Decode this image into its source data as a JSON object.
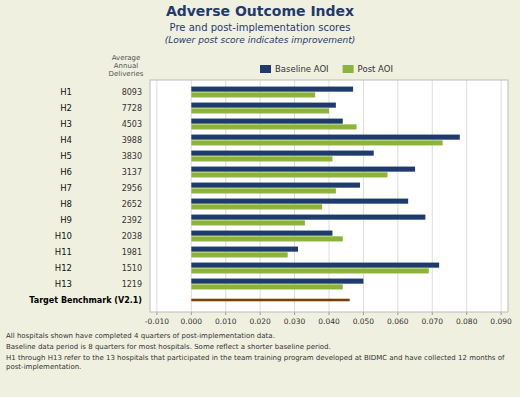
{
  "chart_data": {
    "type": "bar",
    "orientation": "horizontal",
    "title": "Adverse Outcome Index",
    "subtitle": "Pre and post-implementation scores",
    "annotations": [
      "(Lower post score indicates improvement)",
      "Average\nAnnual\nDeliveries",
      "All hospitals shown have completed 4 quarters of post-implementation data.",
      "Baseline data period is 8 quarters for most hospitals.  Some reflect a shorter baseline period.",
      "H1 through H13 refer to the 13 hospitals that participated in the team training program developed at BIDMC and have collected 12 months of post-implementation."
    ],
    "categories": [
      "H1",
      "H2",
      "H3",
      "H4",
      "H5",
      "H6",
      "H7",
      "H8",
      "H9",
      "H10",
      "H11",
      "H12",
      "H13",
      "Target Benchmark (V2.1)"
    ],
    "deliveries": [
      8093,
      7728,
      4503,
      3988,
      3830,
      3137,
      2956,
      2652,
      2392,
      2038,
      1981,
      1510,
      1219,
      null
    ],
    "series": [
      {
        "name": "Baseline AOI",
        "color": "#1F3B6E",
        "values": [
          0.047,
          0.042,
          0.044,
          0.078,
          0.053,
          0.065,
          0.049,
          0.063,
          0.068,
          0.041,
          0.031,
          0.072,
          0.05,
          null
        ]
      },
      {
        "name": "Post AOI",
        "color": "#8CB43A",
        "values": [
          0.036,
          0.04,
          0.048,
          0.073,
          0.041,
          0.057,
          0.042,
          0.038,
          0.033,
          0.044,
          0.028,
          0.069,
          0.044,
          null
        ]
      }
    ],
    "benchmark": {
      "value": 0.046,
      "color": "#7B3F00"
    },
    "xlim": [
      -0.012,
      0.092
    ],
    "xticks": [
      {
        "value": -0.01,
        "label": "-0.010"
      },
      {
        "value": 0.0,
        "label": "0.000"
      },
      {
        "value": 0.01,
        "label": "0.010"
      },
      {
        "value": 0.02,
        "label": "0.020"
      },
      {
        "value": 0.03,
        "label": "0.030"
      },
      {
        "value": 0.04,
        "label": "0.040"
      },
      {
        "value": 0.05,
        "label": "0.050"
      },
      {
        "value": 0.06,
        "label": "0.060"
      },
      {
        "value": 0.07,
        "label": "0.070"
      },
      {
        "value": 0.08,
        "label": "0.080"
      },
      {
        "value": 0.09,
        "label": "0.090"
      }
    ],
    "grid": true,
    "legend": "top"
  }
}
